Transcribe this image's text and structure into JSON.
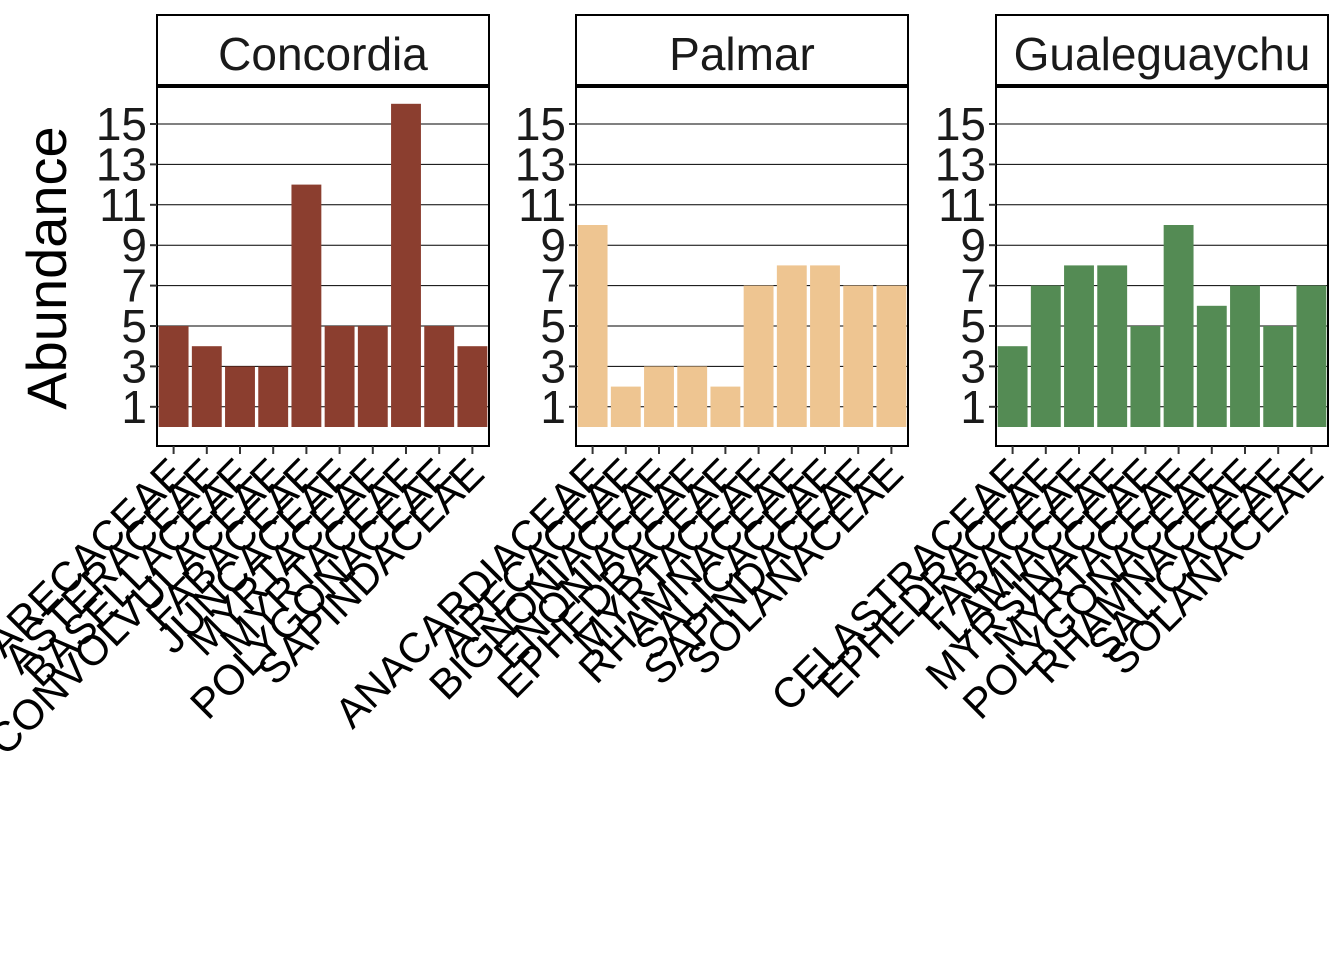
{
  "chart_data": {
    "type": "bar",
    "ylabel": "Abundance",
    "xlabel": "",
    "ylim": [
      0,
      17.1
    ],
    "yticks": [
      1,
      3,
      5,
      7,
      9,
      11,
      13,
      15
    ],
    "grid": "horizontal",
    "legend": "none",
    "panels": [
      {
        "title": "Concordia",
        "color": "#8B3E2F",
        "categories": [
          "ARECACEAE",
          "ASTERACEAE",
          "BASELLACEAE",
          "CONVOLVULACEAE",
          "FABACEAE",
          "JUNCACEAE",
          "MYRTACEAE",
          "MYRTACEAE",
          "POLYGONACEAE",
          "SAPINDACEAE"
        ],
        "values": [
          5,
          4,
          3,
          3,
          12,
          5,
          5,
          16,
          5,
          4
        ]
      },
      {
        "title": "Palmar",
        "color": "#EEC591",
        "categories": [
          "ANACARDIACEAE",
          "ARECACEAE",
          "BIGNONIACEAE",
          "ENONIACEAE",
          "EPHEDRACEAE",
          "MYRTACEAE",
          "RHAMNACEAE",
          "SALICACEAE",
          "SAPINDACEAE",
          "SOLANACEAE"
        ],
        "values": [
          10,
          2,
          3,
          3,
          2,
          7,
          8,
          8,
          7,
          7
        ]
      },
      {
        "title": "Gualeguaychu",
        "color": "#548B54",
        "categories": [
          "CELASTRACEAE",
          "EPHEDRACEAE",
          "FABACEAE",
          "LAMIACEAE",
          "MYRSINACEAE",
          "MYRTACEAE",
          "POLYGONACEAE",
          "RHAMNACEAE",
          "SALICACEAE",
          "SOLANACEAE"
        ],
        "values": [
          4,
          7,
          8,
          8,
          5,
          10,
          6,
          7,
          5,
          7
        ]
      }
    ]
  }
}
